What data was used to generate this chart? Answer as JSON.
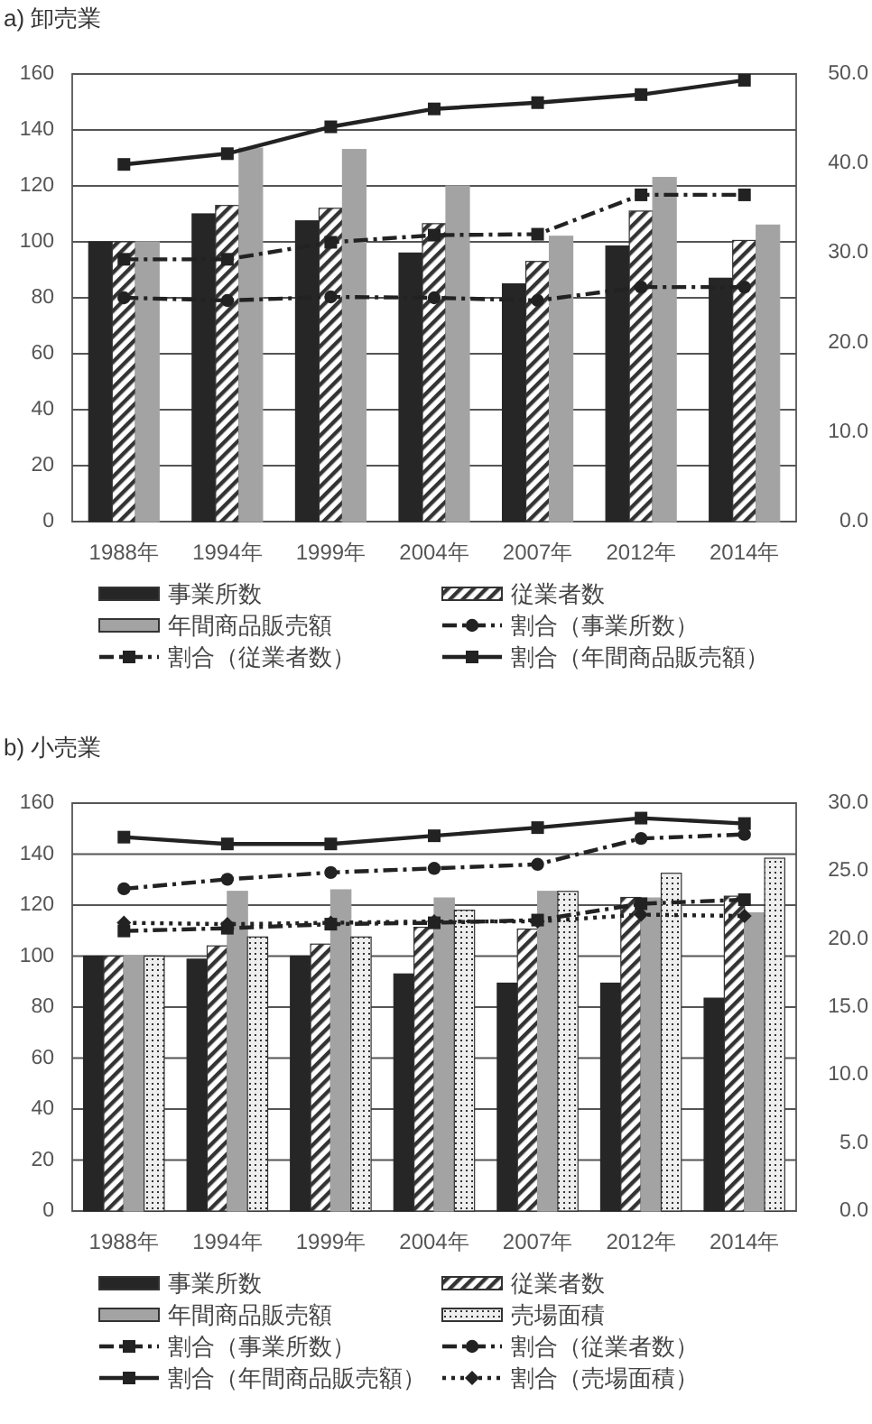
{
  "chart_data": [
    {
      "type": "bar",
      "title": "a) 卸売業",
      "categories": [
        "1988年",
        "1994年",
        "1999年",
        "2004年",
        "2007年",
        "2012年",
        "2014年"
      ],
      "series": [
        {
          "name": "事業所数",
          "color": "#262626",
          "values": [
            100,
            110,
            107.5,
            96,
            85,
            98.5,
            87
          ]
        },
        {
          "name": "従業者数",
          "color": "#333333",
          "values": [
            100,
            113,
            112,
            106.5,
            93,
            111,
            100.5
          ]
        },
        {
          "name": "年間商品販売額",
          "color": "#a3a3a3",
          "values": [
            100,
            133.5,
            133,
            120,
            102,
            123,
            106
          ]
        },
        {
          "name": "割合（事業所数）",
          "type": "line",
          "axis": "y2",
          "color": "#222222",
          "marker": "circle",
          "line_style": "dashed",
          "values": [
            25.0,
            24.7,
            25.1,
            25.0,
            24.7,
            26.2,
            26.2
          ]
        },
        {
          "name": "割合（従業者数）",
          "type": "line",
          "axis": "y2",
          "color": "#222222",
          "marker": "square",
          "line_style": "dashed",
          "values": [
            29.3,
            29.3,
            31.2,
            32.0,
            32.1,
            36.5,
            36.5
          ]
        },
        {
          "name": "割合（年間商品販売額）",
          "type": "line",
          "axis": "y2",
          "color": "#222222",
          "marker": "square",
          "line_style": "solid",
          "values": [
            39.9,
            41.1,
            44.1,
            46.1,
            46.8,
            47.7,
            49.3
          ]
        }
      ],
      "ylim": [
        0,
        160
      ],
      "yticks": [
        0,
        20,
        40,
        60,
        80,
        100,
        120,
        140,
        160
      ],
      "y2lim": [
        0,
        50
      ],
      "y2ticks": [
        {
          "value": 0,
          "label": "0.0"
        },
        {
          "value": 10,
          "label": "10.0"
        },
        {
          "value": 20,
          "label": "20.0"
        },
        {
          "value": 30,
          "label": "30.0"
        },
        {
          "value": 40,
          "label": "40.0"
        },
        {
          "value": 50,
          "label": "50.0"
        }
      ],
      "grid": "y",
      "legend": "bottom"
    },
    {
      "type": "bar",
      "title": "b) 小売業",
      "categories": [
        "1988年",
        "1994年",
        "1999年",
        "2004年",
        "2007年",
        "2012年",
        "2014年"
      ],
      "series": [
        {
          "name": "事業所数",
          "color": "#262626",
          "values": [
            100,
            98.8,
            100,
            93,
            89.4,
            89.4,
            83.5
          ]
        },
        {
          "name": "従業者数",
          "color": "#333333",
          "values": [
            100,
            104,
            104.7,
            111.3,
            110.6,
            123,
            123.5
          ]
        },
        {
          "name": "年間商品販売額",
          "color": "#a3a3a3",
          "values": [
            100,
            125.4,
            126,
            122.8,
            125.4,
            122.8,
            117
          ]
        },
        {
          "name": "売場面積",
          "color": "#333333",
          "values": [
            100,
            107.5,
            107.5,
            118,
            125.4,
            132.5,
            138.4
          ]
        },
        {
          "name": "割合（事業所数）",
          "type": "line",
          "axis": "y2",
          "color": "#222222",
          "marker": "square",
          "line_style": "dashed",
          "values": [
            20.6,
            20.8,
            21.1,
            21.2,
            21.4,
            22.6,
            22.9
          ]
        },
        {
          "name": "割合（従業者数）",
          "type": "line",
          "axis": "y2",
          "color": "#222222",
          "marker": "circle",
          "line_style": "dashed",
          "values": [
            23.7,
            24.4,
            24.9,
            25.2,
            25.5,
            27.4,
            27.7
          ]
        },
        {
          "name": "割合（年間商品販売額）",
          "type": "line",
          "axis": "y2",
          "color": "#222222",
          "marker": "square",
          "line_style": "solid",
          "values": [
            27.5,
            27.0,
            27.0,
            27.6,
            28.2,
            28.9,
            28.5
          ]
        },
        {
          "name": "割合（売場面積）",
          "type": "line",
          "axis": "y2",
          "color": "#222222",
          "marker": "diamond",
          "line_style": "dotted",
          "values": [
            21.2,
            21.1,
            21.2,
            21.3,
            21.3,
            21.8,
            21.7
          ]
        }
      ],
      "ylim": [
        0,
        160
      ],
      "yticks": [
        0,
        20,
        40,
        60,
        80,
        100,
        120,
        140,
        160
      ],
      "y2lim": [
        0,
        30
      ],
      "y2ticks": [
        {
          "value": 0,
          "label": "0.0"
        },
        {
          "value": 5,
          "label": "5.0"
        },
        {
          "value": 10,
          "label": "10.0"
        },
        {
          "value": 15,
          "label": "15.0"
        },
        {
          "value": 20,
          "label": "20.0"
        },
        {
          "value": 25,
          "label": "25.0"
        },
        {
          "value": 30,
          "label": "30.0"
        }
      ],
      "grid": "y",
      "legend": "bottom"
    }
  ]
}
